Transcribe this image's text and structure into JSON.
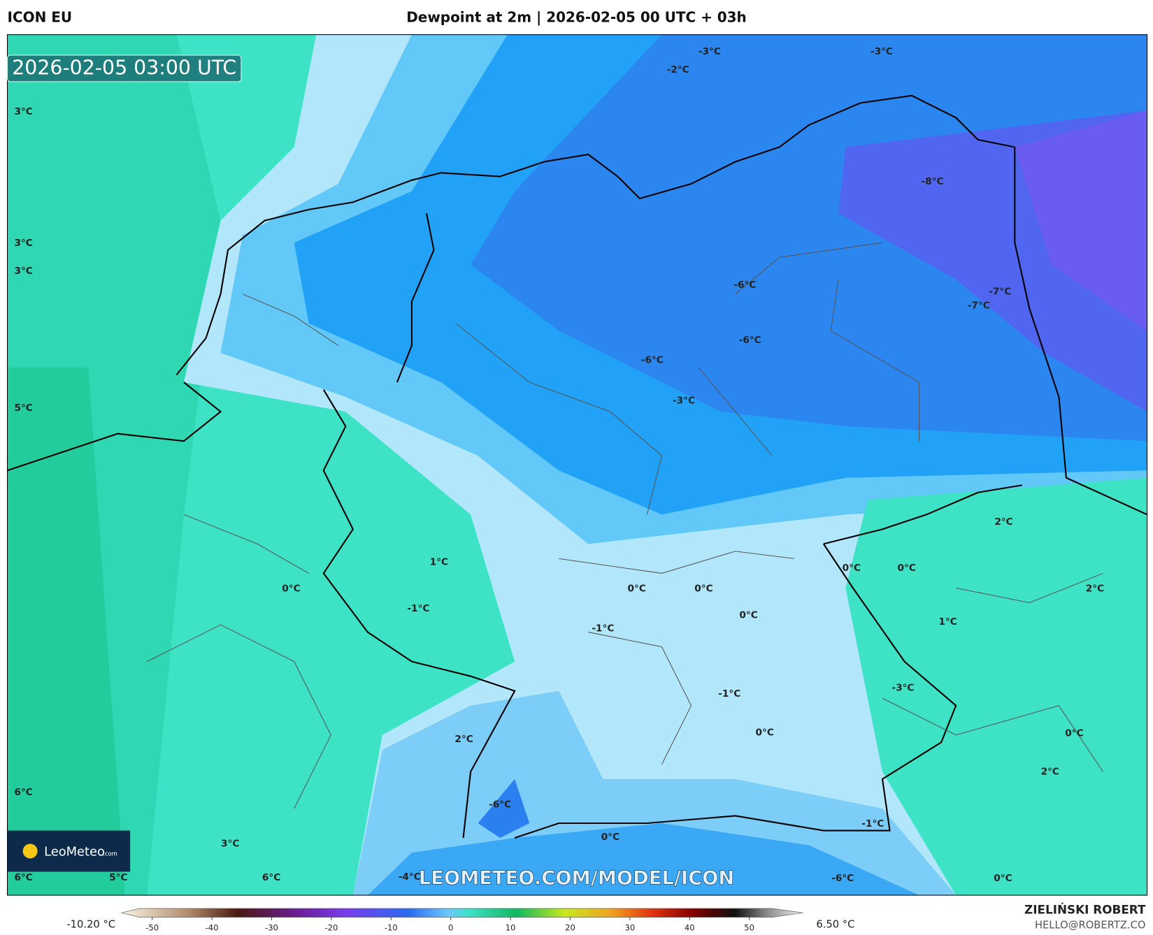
{
  "header": {
    "model": "ICON EU",
    "title": "Dewpoint at 2m | 2026-02-05 00 UTC + 03h"
  },
  "timestamp": "2026-02-05 03:00 UTC",
  "map_labels": [
    "3°C",
    "3°C",
    "3°C",
    "5°C",
    "6°C",
    "6°C",
    "5°C",
    "3°C",
    "6°C",
    "-2°C",
    "-3°C",
    "-3°C",
    "-8°C",
    "-6°C",
    "-6°C",
    "-6°C",
    "-3°C",
    "-7°C",
    "-7°C",
    "2°C",
    "0°C",
    "0°C",
    "2°C",
    "1°C",
    "1°C",
    "0°C",
    "-1°C",
    "0°C",
    "0°C",
    "0°C",
    "-1°C",
    "-1°C",
    "-3°C",
    "0°C",
    "0°C",
    "2°C",
    "2°C",
    "-6°C",
    "0°C",
    "-1°C",
    "-4°C",
    "-6°C",
    "0°C"
  ],
  "logo": {
    "name": "LeoMeteo",
    "suffix": ".com"
  },
  "watermark": "LEOMETEO.COM/MODEL/ICON",
  "author": {
    "name": "ZIELIŃSKI ROBERT",
    "contact": "HELLO@ROBERTZ.CO"
  },
  "colorbar": {
    "min_label": "-10.20 °C",
    "max_label": "6.50 °C",
    "ticks": [
      -50,
      -40,
      -30,
      -20,
      -10,
      0,
      10,
      20,
      30,
      40,
      50
    ]
  }
}
